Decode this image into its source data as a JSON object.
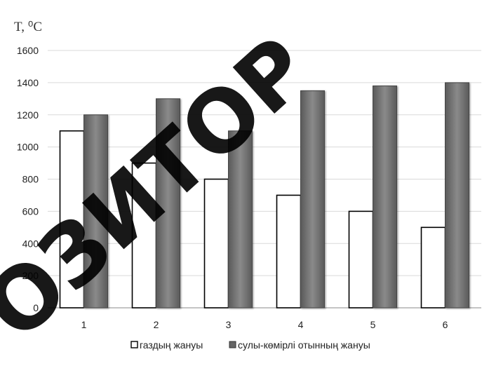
{
  "chart_data": {
    "type": "bar",
    "title": "T, ⁰C",
    "xlabel": "",
    "ylabel": "",
    "categories": [
      "1",
      "2",
      "3",
      "4",
      "5",
      "6"
    ],
    "ylim": [
      0,
      1600
    ],
    "yticks": [
      0,
      200,
      400,
      600,
      800,
      1000,
      1200,
      1400,
      1600
    ],
    "grid": true,
    "legend_position": "bottom",
    "series": [
      {
        "name": "газдың жануы",
        "values": [
          1100,
          900,
          800,
          700,
          600,
          500
        ],
        "color": "#ffffff"
      },
      {
        "name": "сулы-көмірлі отынның жануы",
        "values": [
          1200,
          1300,
          1100,
          1350,
          1380,
          1400
        ],
        "color": "#777777"
      }
    ]
  },
  "watermark": {
    "text": "ОЗИТОР"
  }
}
